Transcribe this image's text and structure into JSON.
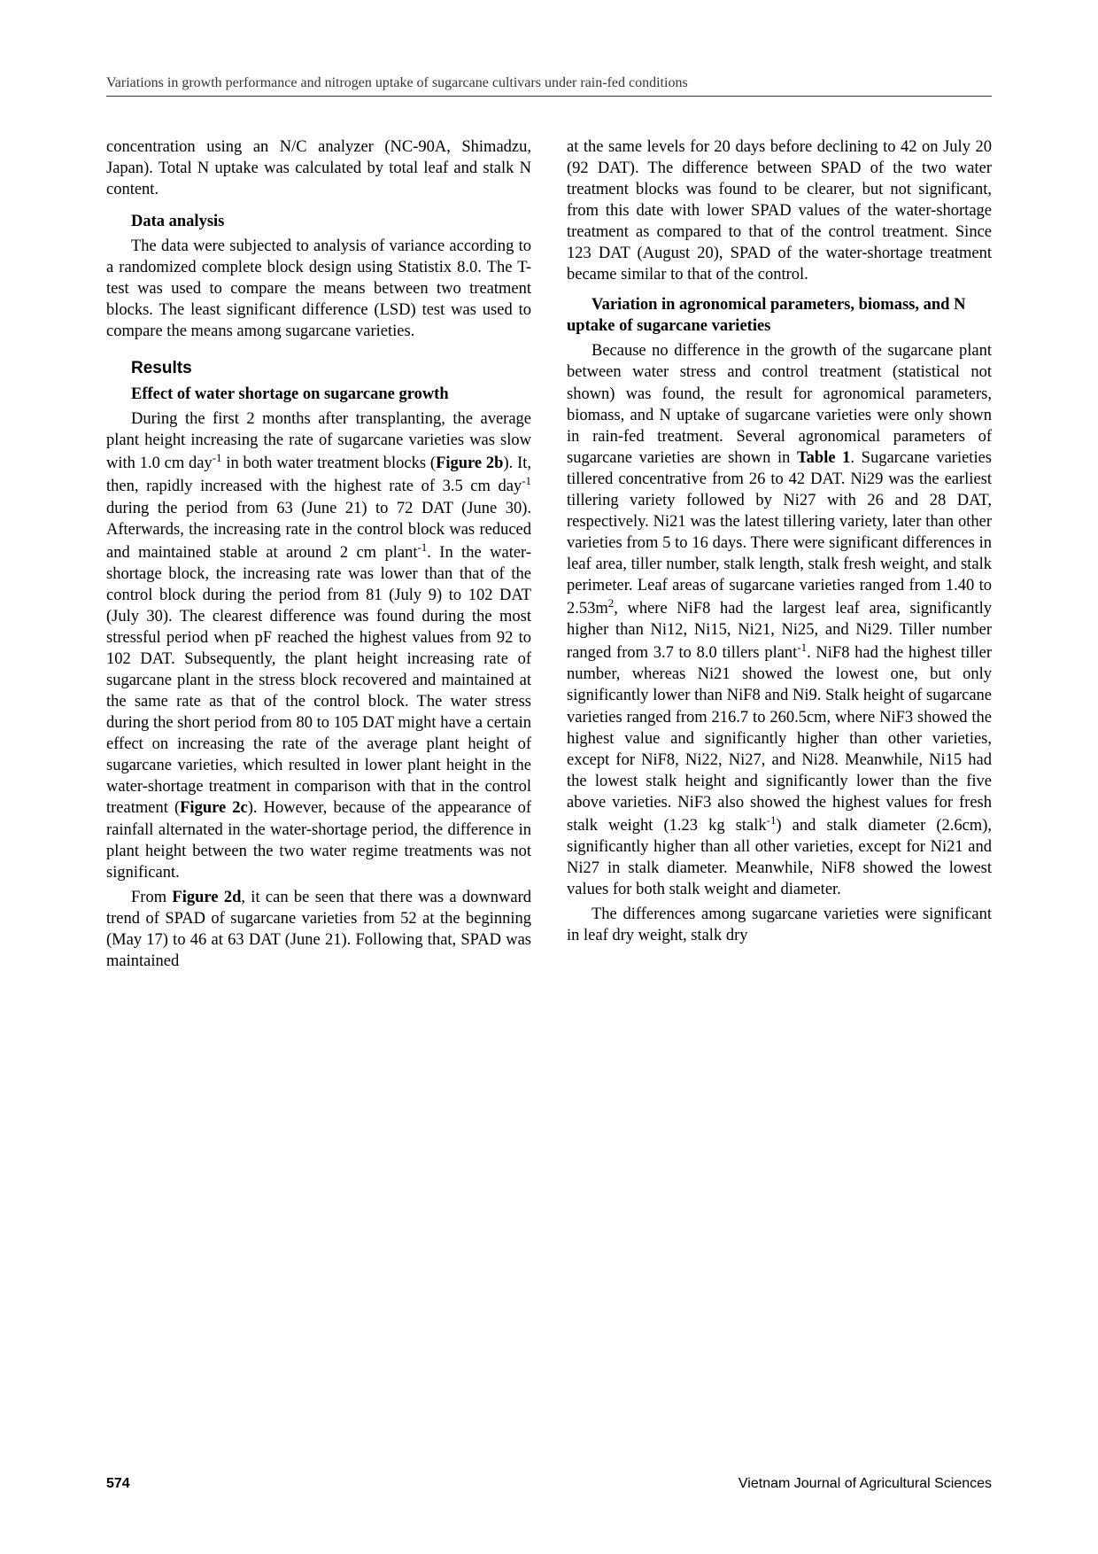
{
  "running_header": "Variations in growth performance and nitrogen uptake of sugarcane cultivars under rain-fed conditions",
  "left_column": {
    "p1": "concentration using an N/C analyzer (NC-90A, Shimadzu, Japan). Total N uptake was calculated by total leaf and stalk N content.",
    "heading1": "Data analysis",
    "p2": "The data were subjected to analysis of variance according to a randomized complete block design using Statistix 8.0. The T-test was used to compare the means between two treatment blocks. The least significant difference (LSD) test was used to compare the means among sugarcane varieties.",
    "results_heading": "Results",
    "subsection1": "Effect of water shortage on sugarcane growth",
    "p3_pre": "During the first 2 months after transplanting, the average plant height increasing the rate of sugarcane varieties was slow with 1.0 cm day",
    "p3_mid1": " in both water treatment blocks (",
    "p3_fig1": "Figure 2b",
    "p3_mid2": "). It, then, rapidly increased with the highest rate of 3.5 cm day",
    "p3_mid3": " during the period from 63 (June 21) to 72 DAT (June 30). Afterwards, the increasing rate in the control block was reduced and maintained stable at around 2 cm plant",
    "p3_mid4": ". In the water-shortage block, the increasing rate was lower than that of the control block during the period from 81 (July 9) to 102 DAT (July 30). The clearest difference was found during the most stressful period when pF reached the highest values from 92 to 102 DAT. Subsequently, the plant height increasing rate of sugarcane plant in the stress block recovered and maintained at the same rate as that of the control block. The water stress during the short period from 80 to 105 DAT might have a certain effect on increasing the rate of the average plant height of sugarcane varieties, which resulted in lower plant height in the water-shortage treatment in comparison with that in the control treatment (",
    "p3_fig2": "Figure 2c",
    "p3_end": "). However, because of the appearance of rainfall alternated in the water-shortage period, the difference in plant height between the two water regime treatments was not significant.",
    "p4_pre": "From ",
    "p4_fig": "Figure 2d",
    "p4_end": ", it can be seen that there was a downward trend of SPAD of sugarcane varieties from 52 at the beginning (May 17) to 46 at 63 DAT (June 21). Following that, SPAD was maintained"
  },
  "right_column": {
    "p1": "at the same levels for 20 days before declining to 42 on July 20 (92 DAT). The difference between SPAD of the two water treatment blocks was found to be clearer, but not significant, from this date with lower SPAD values of the water-shortage treatment as compared to that of the control treatment. Since 123 DAT (August 20), SPAD of the water-shortage treatment became similar to that of the control.",
    "subsection2": "Variation in agronomical parameters, biomass, and N uptake of sugarcane varieties",
    "p2_pre": "Because no difference in the growth of the sugarcane plant between water stress and control treatment (statistical not shown) was found, the result for agronomical parameters, biomass, and N uptake of sugarcane varieties were only shown in rain-fed treatment. Several agronomical parameters of sugarcane varieties are shown in ",
    "p2_table": "Table 1",
    "p2_mid1": ". Sugarcane varieties tillered concentrative from 26 to 42 DAT. Ni29 was the earliest tillering variety followed by Ni27 with 26 and 28 DAT, respectively. Ni21 was the latest tillering variety, later than other varieties from 5 to 16 days. There were significant differences in leaf area, tiller number, stalk length, stalk fresh weight, and stalk perimeter. Leaf areas of sugarcane varieties ranged from 1.40 to 2.53m",
    "p2_mid2": ", where NiF8 had the largest leaf area, significantly higher than Ni12, Ni15, Ni21, Ni25, and Ni29. Tiller number ranged from 3.7 to 8.0 tillers plant",
    "p2_mid3": ". NiF8 had the highest tiller number, whereas Ni21 showed the lowest one, but only significantly lower than NiF8 and Ni9. Stalk height of sugarcane varieties ranged from 216.7 to 260.5cm, where NiF3 showed the highest value and significantly higher than other varieties, except for NiF8, Ni22, Ni27, and Ni28. Meanwhile, Ni15 had the lowest stalk height and significantly lower than the five above varieties. NiF3 also showed the highest values for fresh stalk weight (1.23 kg stalk",
    "p2_end": ") and stalk diameter (2.6cm), significantly higher than all other varieties, except for Ni21 and Ni27 in stalk diameter. Meanwhile, NiF8 showed the lowest values for both stalk weight and diameter.",
    "p3": "The differences among sugarcane varieties were significant in leaf dry weight, stalk dry"
  },
  "footer": {
    "page_number": "574",
    "journal_name": "Vietnam Journal of Agricultural Sciences"
  }
}
